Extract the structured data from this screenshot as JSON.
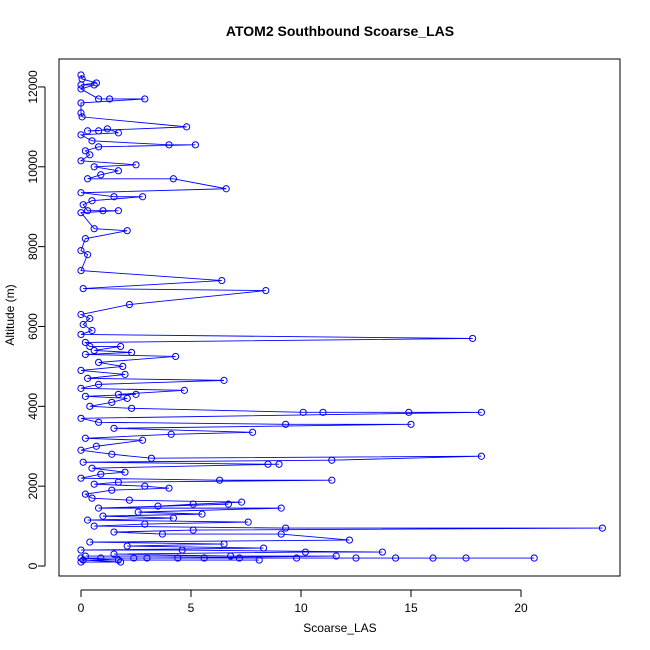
{
  "chart_data": {
    "type": "line",
    "title": "ATOM2 Southbound Scoarse_LAS",
    "xlabel": "Scoarse_LAS",
    "ylabel": "Altitude (m)",
    "xlim": [
      -1.0,
      24.5
    ],
    "ylim": [
      -250,
      12700
    ],
    "x_ticks": [
      0,
      5,
      10,
      15,
      20
    ],
    "y_ticks": [
      0,
      2000,
      4000,
      6000,
      8000,
      10000,
      12000
    ],
    "grid": false,
    "legend": "none",
    "series_color": "#0000ff",
    "marker": "open-circle",
    "series": [
      {
        "points": [
          [
            0.0,
            12300
          ],
          [
            0.05,
            12200
          ],
          [
            0.7,
            12100
          ],
          [
            0.0,
            12050
          ],
          [
            0.6,
            12050
          ],
          [
            0.0,
            11950
          ],
          [
            0.8,
            11700
          ],
          [
            1.3,
            11700
          ],
          [
            2.9,
            11700
          ],
          [
            0.0,
            11600
          ],
          [
            0.0,
            11350
          ],
          [
            0.05,
            11250
          ],
          [
            4.8,
            11000
          ],
          [
            0.3,
            10900
          ],
          [
            0.8,
            10900
          ],
          [
            1.2,
            10950
          ],
          [
            1.7,
            10850
          ],
          [
            0.0,
            10800
          ],
          [
            0.5,
            10650
          ],
          [
            4.0,
            10550
          ],
          [
            5.2,
            10550
          ],
          [
            0.8,
            10500
          ],
          [
            0.2,
            10400
          ],
          [
            0.4,
            10300
          ],
          [
            0.0,
            10150
          ],
          [
            2.5,
            10050
          ],
          [
            0.6,
            10000
          ],
          [
            1.7,
            9900
          ],
          [
            0.9,
            9800
          ],
          [
            0.3,
            9700
          ],
          [
            4.2,
            9700
          ],
          [
            6.6,
            9450
          ],
          [
            0.0,
            9350
          ],
          [
            1.5,
            9250
          ],
          [
            2.8,
            9250
          ],
          [
            0.5,
            9150
          ],
          [
            0.1,
            9050
          ],
          [
            0.3,
            8900
          ],
          [
            1.0,
            8900
          ],
          [
            1.7,
            8900
          ],
          [
            0.0,
            8850
          ],
          [
            0.6,
            8450
          ],
          [
            2.1,
            8400
          ],
          [
            0.2,
            8200
          ],
          [
            0.0,
            7900
          ],
          [
            0.3,
            7800
          ],
          [
            0.0,
            7400
          ],
          [
            6.4,
            7150
          ],
          [
            0.1,
            6950
          ],
          [
            8.4,
            6900
          ],
          [
            2.2,
            6550
          ],
          [
            0.0,
            6300
          ],
          [
            0.4,
            6200
          ],
          [
            0.1,
            6050
          ],
          [
            0.5,
            5900
          ],
          [
            0.0,
            5800
          ],
          [
            17.8,
            5700
          ],
          [
            0.2,
            5600
          ],
          [
            0.4,
            5500
          ],
          [
            1.8,
            5500
          ],
          [
            0.6,
            5400
          ],
          [
            2.3,
            5350
          ],
          [
            0.2,
            5300
          ],
          [
            4.3,
            5250
          ],
          [
            0.8,
            5100
          ],
          [
            1.9,
            5000
          ],
          [
            0.0,
            4900
          ],
          [
            2.0,
            4800
          ],
          [
            0.3,
            4700
          ],
          [
            6.5,
            4650
          ],
          [
            0.8,
            4550
          ],
          [
            0.0,
            4450
          ],
          [
            4.7,
            4400
          ],
          [
            1.7,
            4300
          ],
          [
            2.5,
            4300
          ],
          [
            0.2,
            4250
          ],
          [
            2.1,
            4200
          ],
          [
            1.4,
            4100
          ],
          [
            0.4,
            4000
          ],
          [
            2.3,
            3950
          ],
          [
            10.1,
            3850
          ],
          [
            11.0,
            3850
          ],
          [
            14.9,
            3850
          ],
          [
            18.2,
            3850
          ],
          [
            0.0,
            3700
          ],
          [
            0.8,
            3600
          ],
          [
            9.3,
            3550
          ],
          [
            15.0,
            3550
          ],
          [
            1.5,
            3450
          ],
          [
            7.8,
            3350
          ],
          [
            4.1,
            3300
          ],
          [
            0.2,
            3200
          ],
          [
            2.8,
            3150
          ],
          [
            0.7,
            3000
          ],
          [
            0.0,
            2900
          ],
          [
            1.4,
            2800
          ],
          [
            3.2,
            2700
          ],
          [
            18.2,
            2750
          ],
          [
            11.4,
            2650
          ],
          [
            0.1,
            2600
          ],
          [
            8.5,
            2550
          ],
          [
            9.0,
            2550
          ],
          [
            0.5,
            2450
          ],
          [
            2.0,
            2350
          ],
          [
            0.9,
            2300
          ],
          [
            0.0,
            2200
          ],
          [
            6.3,
            2150
          ],
          [
            11.4,
            2150
          ],
          [
            1.7,
            2100
          ],
          [
            0.6,
            2050
          ],
          [
            2.9,
            2000
          ],
          [
            4.0,
            1950
          ],
          [
            1.4,
            1900
          ],
          [
            0.2,
            1800
          ],
          [
            0.5,
            1700
          ],
          [
            2.2,
            1650
          ],
          [
            7.3,
            1600
          ],
          [
            5.1,
            1550
          ],
          [
            3.5,
            1500
          ],
          [
            6.7,
            1550
          ],
          [
            0.8,
            1450
          ],
          [
            9.1,
            1450
          ],
          [
            2.6,
            1350
          ],
          [
            5.5,
            1300
          ],
          [
            1.0,
            1250
          ],
          [
            4.2,
            1200
          ],
          [
            0.3,
            1150
          ],
          [
            7.6,
            1100
          ],
          [
            2.9,
            1050
          ],
          [
            0.6,
            1000
          ],
          [
            9.3,
            950
          ],
          [
            23.7,
            950
          ],
          [
            5.1,
            900
          ],
          [
            1.5,
            850
          ],
          [
            3.7,
            800
          ],
          [
            9.1,
            800
          ],
          [
            12.2,
            650
          ],
          [
            0.4,
            600
          ],
          [
            6.5,
            550
          ],
          [
            2.1,
            500
          ],
          [
            8.3,
            450
          ],
          [
            0.0,
            400
          ],
          [
            4.6,
            400
          ],
          [
            13.7,
            350
          ],
          [
            10.2,
            350
          ],
          [
            1.5,
            300
          ],
          [
            6.8,
            250
          ],
          [
            0.2,
            250
          ],
          [
            11.6,
            250
          ],
          [
            3.0,
            200
          ],
          [
            14.3,
            200
          ],
          [
            16.0,
            200
          ],
          [
            17.5,
            200
          ],
          [
            20.6,
            200
          ],
          [
            9.8,
            200
          ],
          [
            5.6,
            200
          ],
          [
            0.9,
            200
          ],
          [
            12.5,
            200
          ],
          [
            7.2,
            200
          ],
          [
            2.4,
            200
          ],
          [
            4.4,
            200
          ],
          [
            0.0,
            200
          ],
          [
            1.7,
            150
          ],
          [
            8.1,
            150
          ],
          [
            0.1,
            150
          ],
          [
            1.8,
            100
          ],
          [
            0.0,
            100
          ]
        ]
      }
    ]
  }
}
